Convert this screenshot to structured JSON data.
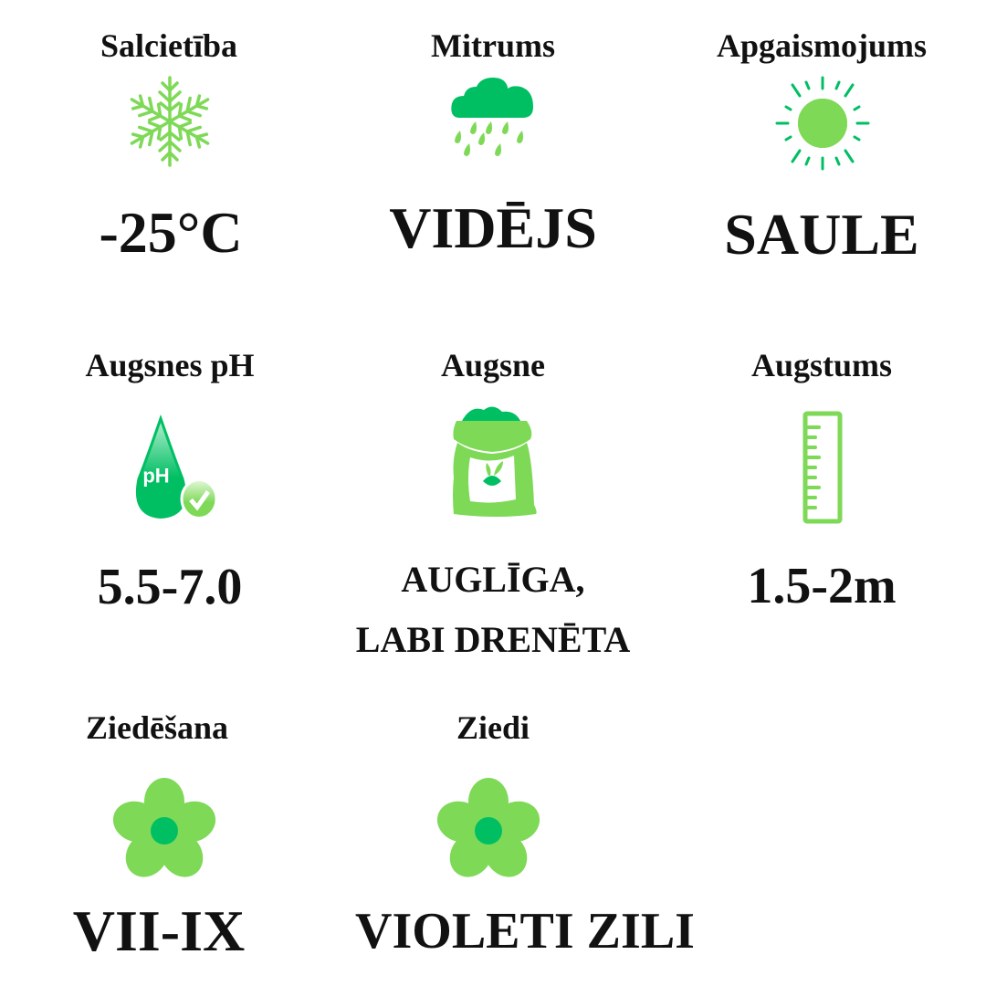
{
  "colors": {
    "light_green": "#7ED957",
    "green": "#00BF63",
    "text": "#111111"
  },
  "items": [
    {
      "label": "Salcietība",
      "value": "-25°C",
      "icon": "snowflake-icon"
    },
    {
      "label": "Mitrums",
      "value": "VIDĒJS",
      "icon": "rain-cloud-icon"
    },
    {
      "label": "Apgaismojums",
      "value": "SAULE",
      "icon": "sun-icon"
    },
    {
      "label": "Augsnes pH",
      "value": "5.5-7.0",
      "icon": "ph-drop-icon",
      "icon_text": "pH"
    },
    {
      "label": "Augsne",
      "value_lines": [
        "AUGLĪGA,",
        "LABI DRENĒTA"
      ],
      "icon": "soil-bag-icon"
    },
    {
      "label": "Augstums",
      "value": "1.5-2m",
      "icon": "ruler-icon"
    },
    {
      "label": "Ziedēšana",
      "value": "VII-IX",
      "icon": "flower-icon"
    },
    {
      "label": "Ziedi",
      "value": "VIOLETI ZILI",
      "icon": "flower-icon"
    }
  ]
}
